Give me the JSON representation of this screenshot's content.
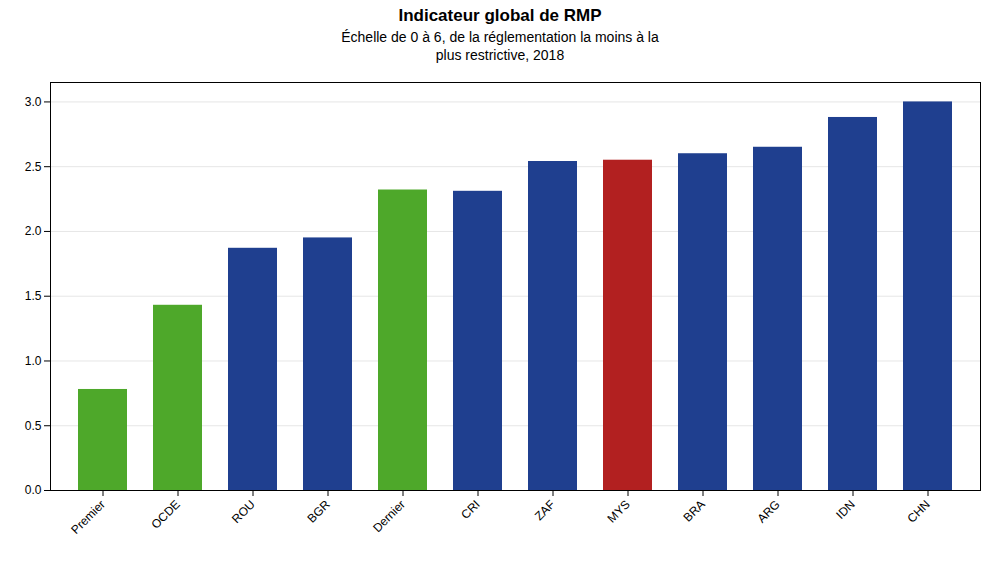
{
  "chart_data": {
    "type": "bar",
    "title": "Indicateur global de RMP",
    "subtitle": "Échelle de 0 à 6, de la réglementation la moins à la\nplus restrictive, 2018",
    "categories": [
      "Premier",
      "OCDE",
      "ROU",
      "BGR",
      "Dernier",
      "CRI",
      "ZAF",
      "MYS",
      "BRA",
      "ARG",
      "IDN",
      "CHN"
    ],
    "values": [
      0.78,
      1.43,
      1.87,
      1.95,
      2.32,
      2.31,
      2.54,
      2.55,
      2.6,
      2.65,
      2.88,
      3.0
    ],
    "colors": [
      "#4ea82a",
      "#4ea82a",
      "#1f3f8f",
      "#1f3f8f",
      "#4ea82a",
      "#1f3f8f",
      "#1f3f8f",
      "#b22020",
      "#1f3f8f",
      "#1f3f8f",
      "#1f3f8f",
      "#1f3f8f"
    ],
    "ylim": [
      0.0,
      3.15
    ],
    "yticks": [
      {
        "value": 0.0,
        "label": "0.0"
      },
      0.5,
      {
        "value": 1.0,
        "label": "1.0"
      },
      1.5,
      {
        "value": 2.0,
        "label": "2.0"
      },
      2.5,
      {
        "value": 3.0,
        "label": "3.0"
      }
    ],
    "grid": true
  }
}
